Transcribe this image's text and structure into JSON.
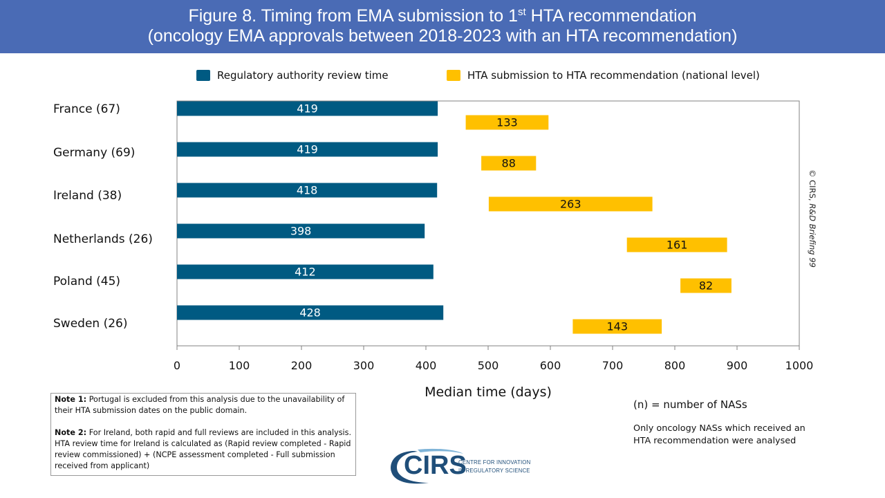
{
  "title": {
    "line1_pre": "Figure 8. Timing from EMA submission to 1",
    "line1_sup": "st",
    "line1_post": " HTA recommendation",
    "line2": "(oncology EMA approvals between 2018-2023 with an HTA recommendation)"
  },
  "colors": {
    "title_bar": "#4a6bb5",
    "regulatory": "#005a82",
    "hta": "#ffc000"
  },
  "chart_data": {
    "type": "bar",
    "orientation": "horizontal",
    "categories": [
      "France (67)",
      "Germany (69)",
      "Ireland (38)",
      "Netherlands (26)",
      "Poland (45)",
      "Sweden (26)"
    ],
    "series": [
      {
        "name": "Regulatory authority review time",
        "values": [
          419,
          419,
          418,
          398,
          412,
          428
        ]
      },
      {
        "name": "HTA submission to HTA recommendation (national level)",
        "start": [
          464,
          489,
          501,
          723,
          809,
          636
        ],
        "values": [
          133,
          88,
          263,
          161,
          82,
          143
        ]
      }
    ],
    "xlabel": "Median time (days)",
    "ylabel": "",
    "xlim": [
      0,
      1000
    ],
    "xticks": [
      0,
      100,
      200,
      300,
      400,
      500,
      600,
      700,
      800,
      900,
      1000
    ],
    "grid": false,
    "legend": "top"
  },
  "copyright": {
    "prefix": "© CIRS, ",
    "italic": "R&D Briefing 99"
  },
  "notes": {
    "note1_label": "Note 1:",
    "note1_text": " Portugal is excluded from this analysis due to the unavailability of their HTA submission dates on the public domain.",
    "note2_label": "Note 2:",
    "note2_text": " For Ireland, both rapid and full reviews are included in this analysis. HTA review time for Ireland is calculated as (Rapid review completed - Rapid review commissioned) + (NCPE assessment completed - Full submission received from applicant)"
  },
  "aside": {
    "n_definition": "(n) = number of NASs",
    "only_line1": "Only oncology NASs which received an",
    "only_line2": "HTA recommendation were analysed"
  },
  "logo": {
    "text": "CIRS",
    "sub_line1": "CENTRE FOR INNOVATION",
    "sub_line2": "IN REGULATORY SCIENCE"
  }
}
